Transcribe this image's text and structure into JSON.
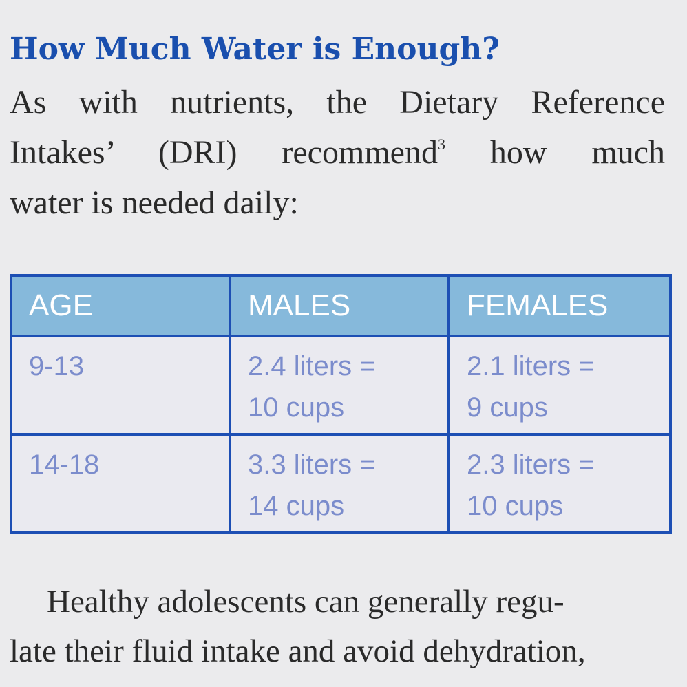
{
  "heading": "How Much Water is Enough?",
  "intro": {
    "line1": "As with nutrients, the Dietary Reference",
    "line2_before": "Intakes’ (DRI) recommend",
    "line2_sup": "3",
    "line2_after": " how much",
    "line3": "water is needed daily:"
  },
  "table": {
    "headers": [
      "AGE",
      "MALES",
      "FEMALES"
    ],
    "rows": [
      {
        "age": "9-13",
        "males": [
          "2.4 liters =",
          "10 cups"
        ],
        "females": [
          "2.1 liters =",
          "9 cups"
        ]
      },
      {
        "age": "14-18",
        "males": [
          "3.3 liters =",
          "14 cups"
        ],
        "females": [
          "2.3 liters =",
          "10 cups"
        ]
      }
    ]
  },
  "body": {
    "line1": "Healthy adolescents can generally regu-",
    "line2": "late their fluid intake and avoid dehydration,"
  },
  "colors": {
    "heading": "#1a4fae",
    "table_border": "#1d4fb4",
    "table_header_bg": "#86b9db",
    "table_cell_text": "#7b8ccc",
    "page_bg": "#ebebed"
  }
}
